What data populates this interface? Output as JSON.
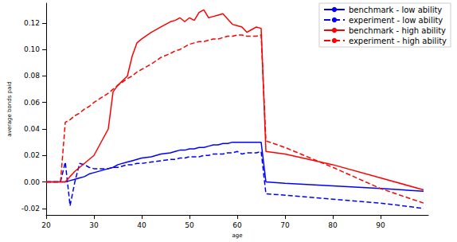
{
  "chart_data": {
    "type": "line",
    "x_label": "age",
    "y_label": "average bonds paid",
    "x": [
      20,
      23,
      24,
      25,
      26,
      27,
      28,
      29,
      30,
      33,
      34,
      35,
      37,
      38,
      39,
      40,
      42,
      44,
      46,
      47,
      48,
      49,
      50,
      51,
      52,
      53,
      54,
      55,
      56,
      57,
      58,
      59,
      60,
      61,
      62,
      63,
      64,
      65,
      66,
      70,
      80,
      90,
      99
    ],
    "series": [
      {
        "name": "benchmark - low ability",
        "color": "#0000ff",
        "line_style": "solid",
        "values": [
          0,
          0,
          0,
          0.001,
          0.002,
          0.003,
          0.004,
          0.006,
          0.007,
          0.01,
          0.011,
          0.013,
          0.015,
          0.016,
          0.017,
          0.018,
          0.019,
          0.021,
          0.022,
          0.023,
          0.024,
          0.024,
          0.025,
          0.025,
          0.026,
          0.026,
          0.027,
          0.028,
          0.028,
          0.029,
          0.029,
          0.03,
          0.03,
          0.03,
          0.03,
          0.03,
          0.03,
          0.03,
          0.0,
          -0.001,
          -0.003,
          -0.005,
          -0.007
        ]
      },
      {
        "name": "experiment - low ability",
        "color": "#0000ff",
        "line_style": "dashed",
        "values": [
          0,
          0,
          0.015,
          -0.018,
          0.0,
          0.014,
          0.013,
          0.011,
          0.01,
          0.01,
          0.011,
          0.011,
          0.013,
          0.013,
          0.014,
          0.014,
          0.015,
          0.016,
          0.017,
          0.017,
          0.018,
          0.018,
          0.019,
          0.019,
          0.019,
          0.02,
          0.02,
          0.021,
          0.021,
          0.021,
          0.022,
          0.022,
          0.023,
          0.021,
          0.022,
          0.022,
          0.022,
          0.023,
          -0.009,
          -0.01,
          -0.013,
          -0.016,
          -0.02
        ]
      },
      {
        "name": "benchmark - high ability",
        "color": "#ff0000",
        "line_style": "solid",
        "values": [
          0,
          0,
          0,
          0.004,
          0.008,
          0.011,
          0.014,
          0.017,
          0.02,
          0.04,
          0.068,
          0.073,
          0.08,
          0.095,
          0.105,
          0.108,
          0.113,
          0.117,
          0.121,
          0.122,
          0.124,
          0.121,
          0.124,
          0.122,
          0.128,
          0.13,
          0.124,
          0.125,
          0.126,
          0.127,
          0.123,
          0.119,
          0.118,
          0.117,
          0.113,
          0.115,
          0.117,
          0.116,
          0.023,
          0.021,
          0.013,
          0.003,
          -0.006
        ]
      },
      {
        "name": "experiment - high ability",
        "color": "#ff0000",
        "line_style": "dashed",
        "values": [
          0,
          0,
          0.045,
          0.047,
          0.05,
          0.052,
          0.055,
          0.057,
          0.06,
          0.067,
          0.07,
          0.073,
          0.078,
          0.08,
          0.083,
          0.085,
          0.089,
          0.094,
          0.097,
          0.099,
          0.1,
          0.102,
          0.104,
          0.105,
          0.106,
          0.106,
          0.107,
          0.108,
          0.108,
          0.109,
          0.11,
          0.11,
          0.111,
          0.111,
          0.11,
          0.11,
          0.11,
          0.111,
          0.031,
          0.026,
          0.011,
          -0.005,
          -0.016
        ]
      }
    ],
    "xlim": [
      20,
      100
    ],
    "xticks": [
      20,
      30,
      40,
      50,
      60,
      70,
      80,
      90
    ],
    "ylim": [
      -0.025,
      0.135
    ],
    "yticks": [
      -0.02,
      {
        "value": 0,
        "label": "0.00"
      },
      0.02,
      0.04,
      0.06,
      0.08,
      {
        "value": 0.1,
        "label": "0.10"
      },
      0.12
    ],
    "grid": false,
    "legend": "upper right"
  }
}
